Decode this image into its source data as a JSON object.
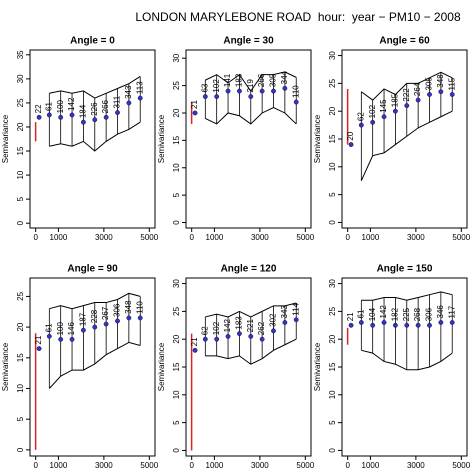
{
  "title": "LONDON MARYLEBONE ROAD  hour:  year − PM10 − 2008",
  "chart_data": [
    {
      "type": "scatter",
      "title": "Angle = 0",
      "ylabel": "Semivariance",
      "x": [
        150,
        600,
        1100,
        1600,
        2100,
        2600,
        3100,
        3600,
        4100,
        4600
      ],
      "values": [
        22,
        22.5,
        22,
        22.5,
        21,
        21.5,
        22,
        23,
        25,
        26
      ],
      "counts": [
        "22",
        "61",
        "100",
        "142",
        "184",
        "226",
        "266",
        "311",
        "343",
        "113"
      ],
      "upper": [
        null,
        27,
        27.5,
        27,
        27.5,
        26,
        27,
        28,
        29,
        30.5
      ],
      "lower": [
        null,
        16,
        16.5,
        16,
        17,
        15,
        17,
        18.5,
        19.5,
        21
      ],
      "nugget": [
        17,
        21
      ],
      "xlim": [
        -250,
        5250
      ],
      "xticks": [
        0,
        1000,
        3000,
        5000
      ],
      "ylim": [
        -1,
        36
      ],
      "yticks": [
        0,
        5,
        10,
        15,
        20,
        25,
        30,
        35
      ],
      "color": "#3333cc",
      "envelope_color": "#000000",
      "nugget_color": "#dd2222"
    },
    {
      "type": "scatter",
      "title": "Angle = 30",
      "ylabel": "Semivariance",
      "x": [
        150,
        600,
        1100,
        1600,
        2100,
        2600,
        3100,
        3600,
        4100,
        4600
      ],
      "values": [
        20,
        23,
        23,
        24,
        24,
        23,
        24,
        24,
        24.5,
        22
      ],
      "counts": [
        "21",
        "63",
        "102",
        "141",
        "183",
        "219",
        "266",
        "305",
        "344",
        "110"
      ],
      "upper": [
        null,
        26,
        27,
        25.5,
        27,
        24,
        27,
        27,
        27.5,
        26.5
      ],
      "lower": [
        null,
        19,
        18,
        20,
        19.5,
        18,
        20,
        21,
        20,
        18
      ],
      "nugget": [
        18,
        22
      ],
      "xlim": [
        -250,
        5250
      ],
      "xticks": [
        0,
        1000,
        3000,
        5000
      ],
      "ylim": [
        -1,
        31.5
      ],
      "yticks": [
        0,
        5,
        10,
        15,
        20,
        25,
        30
      ],
      "color": "#3333cc",
      "envelope_color": "#000000",
      "nugget_color": "#dd2222"
    },
    {
      "type": "scatter",
      "title": "Angle = 60",
      "ylabel": "Semivariance",
      "x": [
        150,
        600,
        1100,
        1600,
        2100,
        2600,
        3100,
        3600,
        4100,
        4600
      ],
      "values": [
        14,
        17.5,
        18,
        19,
        20,
        21,
        22,
        23,
        23.5,
        23
      ],
      "counts": [
        "20",
        "62",
        "102",
        "145",
        "185",
        "222",
        "264",
        "305",
        "348",
        "115"
      ],
      "upper": [
        null,
        23.5,
        22,
        24,
        23,
        25,
        25,
        26,
        27,
        26
      ],
      "lower": [
        null,
        7.5,
        12,
        12.5,
        14,
        15.5,
        17,
        18,
        19,
        20
      ],
      "nugget": [
        14,
        24
      ],
      "xlim": [
        -250,
        5250
      ],
      "xticks": [
        0,
        1000,
        3000,
        5000
      ],
      "ylim": [
        -1,
        31
      ],
      "yticks": [
        0,
        5,
        10,
        15,
        20,
        25,
        30
      ],
      "color": "#3333cc",
      "envelope_color": "#000000",
      "nugget_color": "#dd2222"
    },
    {
      "type": "scatter",
      "title": "Angle = 90",
      "ylabel": "Semivariance",
      "x": [
        150,
        600,
        1100,
        1600,
        2100,
        2600,
        3100,
        3600,
        4100,
        4600
      ],
      "values": [
        16.5,
        18.5,
        18,
        18,
        19.5,
        20,
        20.5,
        21,
        21.5,
        21.5
      ],
      "counts": [
        "21",
        "61",
        "100",
        "146",
        "187",
        "228",
        "267",
        "306",
        "348",
        "110"
      ],
      "upper": [
        null,
        23,
        23.5,
        23,
        23.5,
        24,
        24,
        24.5,
        25.5,
        25
      ],
      "lower": [
        null,
        10,
        12,
        13,
        13,
        14,
        15.5,
        16.5,
        17.5,
        17
      ],
      "nugget": [
        0,
        19
      ],
      "xlim": [
        -250,
        5250
      ],
      "xticks": [
        0,
        1000,
        3000,
        5000
      ],
      "ylim": [
        -1,
        28
      ],
      "yticks": [
        0,
        5,
        10,
        15,
        20,
        25
      ],
      "color": "#3333cc",
      "envelope_color": "#000000",
      "nugget_color": "#dd2222"
    },
    {
      "type": "scatter",
      "title": "Angle = 120",
      "ylabel": "Semivariance",
      "x": [
        150,
        600,
        1100,
        1600,
        2100,
        2600,
        3100,
        3600,
        4100,
        4600
      ],
      "values": [
        18,
        20,
        20,
        20.5,
        21,
        20.5,
        20,
        21.5,
        23,
        23.5
      ],
      "counts": [
        "21",
        "62",
        "102",
        "142",
        "183",
        "221",
        "262",
        "302",
        "343",
        "114"
      ],
      "upper": [
        null,
        24,
        24.5,
        24,
        25,
        24,
        25,
        26,
        26,
        26.5
      ],
      "lower": [
        null,
        17,
        17,
        16.5,
        17,
        15.5,
        16.5,
        18,
        19,
        20
      ],
      "nugget": [
        0,
        21
      ],
      "xlim": [
        -250,
        5250
      ],
      "xticks": [
        0,
        1000,
        3000,
        5000
      ],
      "ylim": [
        -1,
        31
      ],
      "yticks": [
        0,
        5,
        10,
        15,
        20,
        25,
        30
      ],
      "color": "#3333cc",
      "envelope_color": "#000000",
      "nugget_color": "#dd2222"
    },
    {
      "type": "scatter",
      "title": "Angle = 150",
      "ylabel": "Semivariance",
      "x": [
        150,
        600,
        1100,
        1600,
        2100,
        2600,
        3100,
        3600,
        4100,
        4600
      ],
      "values": [
        22.5,
        23,
        22.5,
        23,
        22.5,
        22.5,
        22.5,
        22.5,
        23,
        23
      ],
      "counts": [
        "21",
        "61",
        "104",
        "142",
        "182",
        "225",
        "268",
        "306",
        "346",
        "117"
      ],
      "upper": [
        null,
        27,
        27,
        27.5,
        27.5,
        27,
        27.5,
        28,
        28.5,
        28
      ],
      "lower": [
        null,
        18,
        17.5,
        16,
        15.5,
        14.5,
        14.5,
        15,
        16,
        17.5
      ],
      "nugget": [
        19,
        22
      ],
      "xlim": [
        -250,
        5250
      ],
      "xticks": [
        0,
        1000,
        3000,
        5000
      ],
      "ylim": [
        -1,
        31
      ],
      "yticks": [
        0,
        5,
        10,
        15,
        20,
        25,
        30
      ],
      "color": "#3333cc",
      "envelope_color": "#000000",
      "nugget_color": "#dd2222"
    }
  ]
}
